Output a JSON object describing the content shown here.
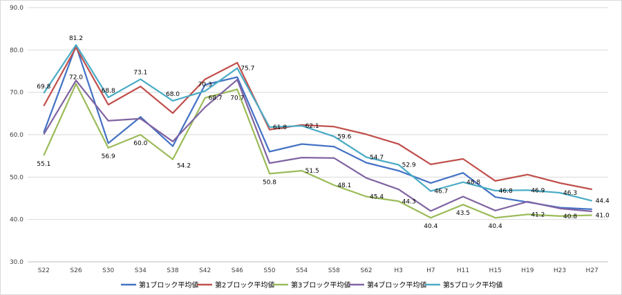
{
  "chart_data": {
    "type": "line",
    "categories": [
      "S22",
      "S26",
      "S30",
      "S34",
      "S38",
      "S42",
      "S46",
      "S50",
      "S54",
      "S58",
      "S62",
      "H3",
      "H7",
      "H11",
      "H15",
      "H19",
      "H23",
      "H27"
    ],
    "ylim": [
      30,
      90
    ],
    "yticks": [
      "30.0",
      "40.0",
      "50.0",
      "60.0",
      "70.0",
      "80.0",
      "90.0"
    ],
    "grid": true,
    "legend_position": "bottom",
    "series": [
      {
        "name": "第1ブロック平均値",
        "color": "#4472c4",
        "values": [
          60.5,
          81.0,
          58.0,
          64.2,
          57.3,
          71.8,
          73.6,
          56.0,
          57.8,
          57.2,
          53.4,
          51.5,
          48.6,
          51.0,
          45.3,
          44.1,
          42.8,
          42.4
        ]
      },
      {
        "name": "第2ブロック平均値",
        "color": "#c0504d",
        "values": [
          66.8,
          80.6,
          67.1,
          71.4,
          65.1,
          73.1,
          77.0,
          61.2,
          62.3,
          61.9,
          60.1,
          57.8,
          53.0,
          54.3,
          49.1,
          50.6,
          48.6,
          47.1
        ]
      },
      {
        "name": "第3ブロック平均値",
        "color": "#9bbb59",
        "values": [
          55.1,
          72.0,
          56.9,
          60.0,
          54.2,
          68.7,
          70.7,
          50.8,
          51.5,
          48.1,
          45.4,
          44.3,
          40.4,
          43.5,
          40.4,
          41.2,
          40.8,
          41.0
        ]
      },
      {
        "name": "第4ブロック平均値",
        "color": "#8064a2",
        "values": [
          60.1,
          72.8,
          63.3,
          63.8,
          58.4,
          66.5,
          73.0,
          53.3,
          54.6,
          54.5,
          49.8,
          47.1,
          42.0,
          45.4,
          42.1,
          44.2,
          42.6,
          41.9
        ]
      },
      {
        "name": "第5ブロック平均値",
        "color": "#4bacc6",
        "values": [
          69.8,
          81.2,
          68.8,
          73.1,
          68.0,
          70.3,
          75.7,
          61.8,
          62.1,
          59.6,
          54.7,
          52.9,
          46.7,
          48.8,
          46.8,
          46.9,
          46.3,
          44.4
        ]
      }
    ],
    "data_labels": [
      {
        "series": 4,
        "index": 0,
        "text": "69.8",
        "place": "above"
      },
      {
        "series": 2,
        "index": 0,
        "text": "55.1",
        "place": "below"
      },
      {
        "series": 4,
        "index": 1,
        "text": "81.2",
        "place": "above"
      },
      {
        "series": 2,
        "index": 1,
        "text": "72.0",
        "place": "above"
      },
      {
        "series": 4,
        "index": 2,
        "text": "68.8",
        "place": "above"
      },
      {
        "series": 2,
        "index": 2,
        "text": "56.9",
        "place": "below"
      },
      {
        "series": 4,
        "index": 3,
        "text": "73.1",
        "place": "above"
      },
      {
        "series": 2,
        "index": 3,
        "text": "60.0",
        "place": "below"
      },
      {
        "series": 4,
        "index": 4,
        "text": "68.0",
        "place": "above"
      },
      {
        "series": 2,
        "index": 4,
        "text": "54.2",
        "place": "below-right"
      },
      {
        "series": 4,
        "index": 5,
        "text": "70.3",
        "place": "above"
      },
      {
        "series": 2,
        "index": 5,
        "text": "68.7",
        "place": "right"
      },
      {
        "series": 4,
        "index": 6,
        "text": "75.7",
        "place": "right"
      },
      {
        "series": 2,
        "index": 6,
        "text": "70.7",
        "place": "below"
      },
      {
        "series": 4,
        "index": 7,
        "text": "61.8",
        "place": "right"
      },
      {
        "series": 2,
        "index": 7,
        "text": "50.8",
        "place": "below"
      },
      {
        "series": 4,
        "index": 8,
        "text": "62.1",
        "place": "right"
      },
      {
        "series": 2,
        "index": 8,
        "text": "51.5",
        "place": "right"
      },
      {
        "series": 4,
        "index": 9,
        "text": "59.6",
        "place": "right"
      },
      {
        "series": 2,
        "index": 9,
        "text": "48.1",
        "place": "right"
      },
      {
        "series": 4,
        "index": 10,
        "text": "54.7",
        "place": "right"
      },
      {
        "series": 2,
        "index": 10,
        "text": "45.4",
        "place": "right"
      },
      {
        "series": 4,
        "index": 11,
        "text": "52.9",
        "place": "right"
      },
      {
        "series": 2,
        "index": 11,
        "text": "44.3",
        "place": "right"
      },
      {
        "series": 4,
        "index": 12,
        "text": "46.7",
        "place": "right"
      },
      {
        "series": 2,
        "index": 12,
        "text": "40.4",
        "place": "below"
      },
      {
        "series": 4,
        "index": 13,
        "text": "48.8",
        "place": "right"
      },
      {
        "series": 2,
        "index": 13,
        "text": "43.5",
        "place": "below"
      },
      {
        "series": 4,
        "index": 14,
        "text": "46.8",
        "place": "right"
      },
      {
        "series": 2,
        "index": 14,
        "text": "40.4",
        "place": "below"
      },
      {
        "series": 4,
        "index": 15,
        "text": "46.9",
        "place": "right"
      },
      {
        "series": 2,
        "index": 15,
        "text": "41.2",
        "place": "right"
      },
      {
        "series": 4,
        "index": 16,
        "text": "46.3",
        "place": "right"
      },
      {
        "series": 2,
        "index": 16,
        "text": "40.8",
        "place": "right"
      },
      {
        "series": 4,
        "index": 17,
        "text": "44.4",
        "place": "right"
      },
      {
        "series": 2,
        "index": 17,
        "text": "41.0",
        "place": "right"
      }
    ]
  }
}
